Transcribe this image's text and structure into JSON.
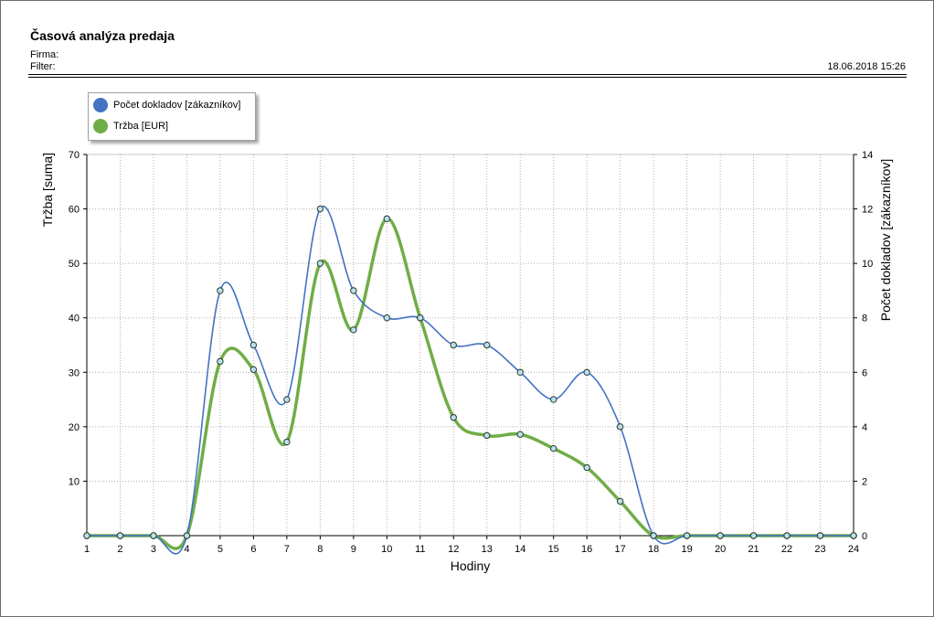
{
  "report": {
    "title": "Časová analýza predaja",
    "firma_label": "Firma:",
    "filter_label": "Filter:",
    "datetime": "18.06.2018 15:26"
  },
  "colors": {
    "count_series": "#4472c4",
    "revenue_series": "#70ad47"
  },
  "chart_data": {
    "type": "line",
    "x": [
      1,
      2,
      3,
      4,
      5,
      6,
      7,
      8,
      9,
      10,
      11,
      12,
      13,
      14,
      15,
      16,
      17,
      18,
      19,
      20,
      21,
      22,
      23,
      24
    ],
    "xlabel": "Hodiny",
    "ylabel": "Tržba [suma]",
    "y2label": "Počet dokladov [zákazníkov]",
    "ylim": [
      0,
      70
    ],
    "y2lim": [
      0,
      14
    ],
    "yticks": [
      10,
      20,
      30,
      40,
      50,
      60,
      70
    ],
    "y2ticks": [
      0,
      2,
      4,
      6,
      8,
      10,
      12,
      14
    ],
    "grid": true,
    "legend_position": "top-left",
    "series": [
      {
        "name": "Počet dokladov [zákazníkov]",
        "axis": "right",
        "color": "#4472c4",
        "values": [
          0,
          0,
          0,
          0,
          9,
          7,
          5,
          12,
          9,
          8,
          8,
          7,
          7,
          6,
          5,
          6,
          4,
          0,
          0,
          0,
          0,
          0,
          0,
          0
        ]
      },
      {
        "name": "Tržba [EUR]",
        "axis": "left",
        "color": "#70ad47",
        "values": [
          0,
          0,
          0,
          0,
          32,
          30.5,
          17.2,
          50,
          37.8,
          58.2,
          40,
          21.7,
          18.4,
          18.6,
          16,
          12.5,
          6.3,
          0,
          0,
          0,
          0,
          0,
          0,
          0
        ]
      }
    ]
  }
}
